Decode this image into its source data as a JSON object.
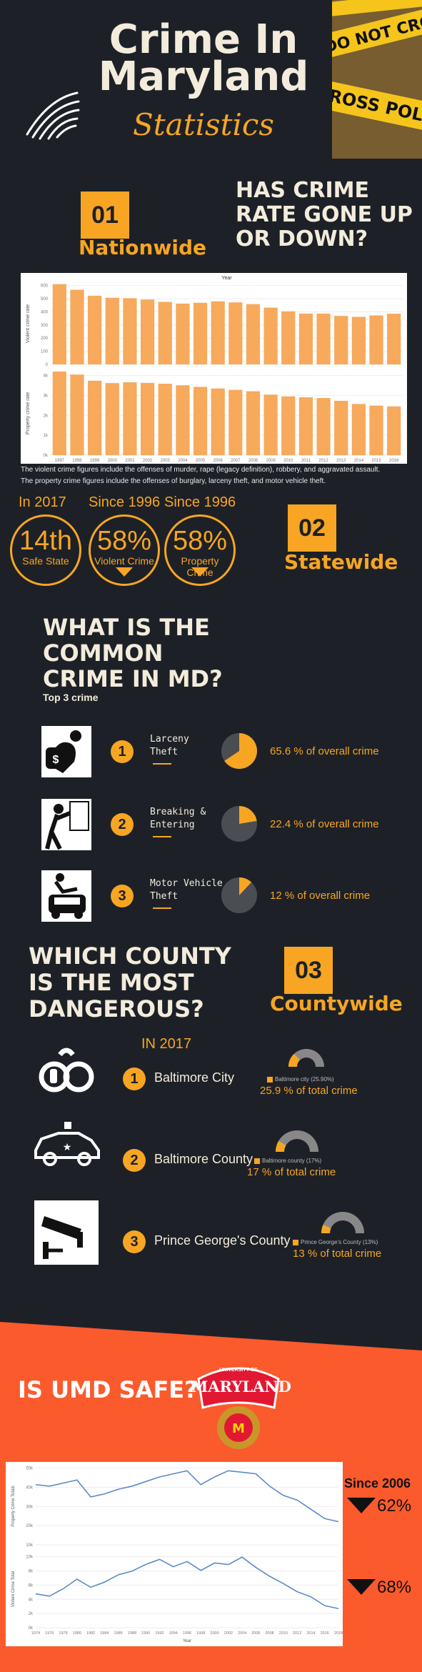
{
  "header": {
    "title_line1": "Crime In",
    "title_line2": "Maryland",
    "subtitle": "Statistics",
    "icon": "fingerprint-icon",
    "photo": "police-tape-photo"
  },
  "section1": {
    "number": "01",
    "label": "Nationwide",
    "question_lines": [
      "HAS CRIME",
      "RATE GONE UP",
      "OR DOWN?"
    ]
  },
  "colors": {
    "accent": "#f7a523",
    "dark": "#1d2127",
    "bar": "#f7a95c",
    "umd_bg": "#fb5a2d",
    "line": "#5b8ac9"
  },
  "chart_data": [
    {
      "type": "bar",
      "title": "Year",
      "categories": [
        "1997",
        "1998",
        "1999",
        "2000",
        "2001",
        "2002",
        "2003",
        "2004",
        "2005",
        "2006",
        "2007",
        "2008",
        "2009",
        "2010",
        "2011",
        "2012",
        "2013",
        "2014",
        "2015",
        "2016"
      ],
      "ylabel": "Violent crime rate",
      "yticks": [
        "0",
        "100",
        "200",
        "300",
        "400",
        "500",
        "600"
      ],
      "ylim": [
        0,
        620
      ],
      "values": [
        611,
        568,
        523,
        507,
        504,
        494,
        476,
        463,
        469,
        480,
        472,
        459,
        432,
        404,
        387,
        387,
        369,
        362,
        373,
        386
      ]
    },
    {
      "type": "bar",
      "categories": [
        "1997",
        "1998",
        "1999",
        "2000",
        "2001",
        "2002",
        "2003",
        "2004",
        "2005",
        "2006",
        "2007",
        "2008",
        "2009",
        "2010",
        "2011",
        "2012",
        "2013",
        "2014",
        "2015",
        "2016"
      ],
      "ylabel": "Property crime rate",
      "yticks": [
        "0k",
        "1k",
        "2k",
        "3k",
        "4k"
      ],
      "ylim": [
        0,
        4.2
      ],
      "values": [
        4.31,
        4.05,
        3.74,
        3.62,
        3.66,
        3.63,
        3.59,
        3.51,
        3.43,
        3.35,
        3.28,
        3.21,
        3.04,
        2.95,
        2.91,
        2.87,
        2.73,
        2.57,
        2.49,
        2.45
      ]
    },
    {
      "type": "line",
      "ylabel": "Property Crime Totals",
      "yticks": [
        "10k",
        "20k",
        "30k",
        "40k",
        "50k"
      ],
      "ylim": [
        5,
        55
      ],
      "x": [
        "1974",
        "1976",
        "1978",
        "1980",
        "1982",
        "1984",
        "1986",
        "1988",
        "1990",
        "1992",
        "1994",
        "1996",
        "1998",
        "2000",
        "2002",
        "2004",
        "2006",
        "2008",
        "2010",
        "2012",
        "2014",
        "2016",
        "2018"
      ],
      "values": [
        44,
        43,
        45,
        47,
        36,
        38,
        41,
        43,
        46,
        49,
        51,
        53,
        44,
        49,
        53,
        52,
        51,
        43,
        37,
        34,
        28,
        22,
        20
      ]
    },
    {
      "type": "line",
      "ylabel": "Violent Crime Total",
      "xlabel": "Year",
      "yticks": [
        "0k",
        "2k",
        "4k",
        "6k",
        "8k",
        "10k"
      ],
      "ylim": [
        0,
        10.5
      ],
      "x": [
        "1974",
        "1976",
        "1978",
        "1980",
        "1982",
        "1984",
        "1986",
        "1988",
        "1990",
        "1992",
        "1994",
        "1996",
        "1998",
        "2000",
        "2002",
        "2004",
        "2006",
        "2008",
        "2010",
        "2012",
        "2014",
        "2016",
        "2018"
      ],
      "values": [
        4.6,
        4.3,
        5.3,
        6.6,
        5.5,
        6.2,
        7.2,
        7.7,
        8.6,
        9.3,
        8.3,
        9.0,
        7.8,
        8.8,
        8.6,
        9.6,
        8.2,
        7.0,
        6.0,
        4.9,
        4.2,
        3.0,
        2.6
      ]
    }
  ],
  "caption": {
    "line1": "The violent crime figures include the offenses of murder, rape (legacy definition), robbery, and aggravated assault.",
    "line2": "The property crime figures include the offenses of burglary, larceny theft, and motor vehicle theft."
  },
  "stats": [
    {
      "head": "In 2017",
      "big": "14th",
      "small": "Safe State",
      "arrow": false
    },
    {
      "head": "Since 1996",
      "big": "58%",
      "small": "Violent Crime",
      "arrow": true
    },
    {
      "head": "Since 1996",
      "big": "58%",
      "small": "Property Crime",
      "arrow": true
    }
  ],
  "section2": {
    "number": "02",
    "label": "Statewide"
  },
  "common": {
    "question_lines": [
      "WHAT IS THE",
      "COMMON",
      "CRIME IN MD?"
    ],
    "sub": "Top 3 crime",
    "items": [
      {
        "num": "1",
        "label_lines": [
          "Larceny",
          "Theft"
        ],
        "pct": "65.6 % of overall crime",
        "share": 0.656,
        "icon": "thief-icon"
      },
      {
        "num": "2",
        "label_lines": [
          "Breaking &",
          "Entering"
        ],
        "pct": "22.4 % of overall crime",
        "share": 0.224,
        "icon": "burglar-icon"
      },
      {
        "num": "3",
        "label_lines": [
          "Motor Vehicle",
          "Theft"
        ],
        "pct": "12 % of overall crime",
        "share": 0.12,
        "icon": "car-thief-icon"
      }
    ]
  },
  "county": {
    "question_lines": [
      "WHICH COUNTY",
      "IS THE MOST",
      "DANGEROUS?"
    ],
    "number": "03",
    "label": "Countywide",
    "year": "IN 2017",
    "items": [
      {
        "num": "1",
        "name": "Baltimore City",
        "legend": "Baltimore city (25.90%)",
        "pct": "25.9 % of total crime",
        "share": 0.259,
        "icon": "handcuffs-icon"
      },
      {
        "num": "2",
        "name": "Baltimore County",
        "legend": "Baltimore county (17%)",
        "pct": "17 % of total crime",
        "share": 0.17,
        "icon": "police-car-icon"
      },
      {
        "num": "3",
        "name": "Prince George's County",
        "legend": "Prince George's County (13%)",
        "pct": "13 % of total crime",
        "share": 0.13,
        "icon": "security-camera-icon"
      }
    ]
  },
  "umd": {
    "question": "IS UMD SAFE?",
    "logo_lines": [
      "UNIVERSITY OF",
      "MARYLAND"
    ],
    "since": "Since 2006",
    "pct1": "62%",
    "pct2": "68%"
  }
}
